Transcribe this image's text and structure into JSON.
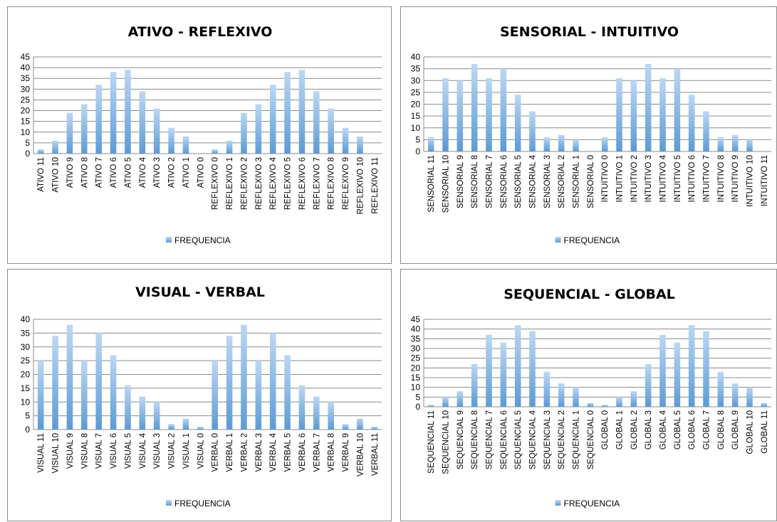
{
  "chart_data": [
    {
      "type": "bar",
      "title": "ATIVO - REFLEXIVO",
      "ylim": [
        0,
        45
      ],
      "ytick_step": 5,
      "grid": true,
      "legend_position": "bottom",
      "color": "#5b9bd5",
      "categories": [
        "ATIVO 11",
        "ATIVO 10",
        "ATIVO 9",
        "ATIVO 8",
        "ATIVO 7",
        "ATIVO 6",
        "ATIVO 5",
        "ATIVO 4",
        "ATIVO 3",
        "ATIVO 2",
        "ATIVO 1",
        "ATIVO 0",
        "REFLEXIVO 0",
        "REFLEXIVO 1",
        "REFLEXIVO 2",
        "REFLEXIVO 3",
        "REFLEXIVO 4",
        "REFLEXIVO 5",
        "REFLEXIVO 6",
        "REFLEXIVO 7",
        "REFLEXIVO 8",
        "REFLEXIVO 9",
        "REFLEXIVO 10",
        "REFLEXIVO 11"
      ],
      "series": [
        {
          "name": "FREQUENCIA",
          "values": [
            2,
            6,
            19,
            23,
            32,
            38,
            39,
            29,
            21,
            12,
            8,
            0,
            2,
            6,
            19,
            23,
            32,
            38,
            39,
            29,
            21,
            12,
            8,
            0
          ]
        }
      ]
    },
    {
      "type": "bar",
      "title": "SENSORIAL - INTUITIVO",
      "ylim": [
        0,
        40
      ],
      "ytick_step": 5,
      "grid": true,
      "legend_position": "bottom",
      "color": "#5b9bd5",
      "categories": [
        "SENSORIAL 11",
        "SENSORIAL 10",
        "SENSORIAL 9",
        "SENSORIAL 8",
        "SENSORIAL 7",
        "SENSORIAL 6",
        "SENSORIAL 5",
        "SENSORIAL 4",
        "SENSORIAL 3",
        "SENSORIAL 2",
        "SENSORIAL 1",
        "SENSORIAL 0",
        "INTUITIVO 0",
        "INTUITIVO 1",
        "INTUITIVO 2",
        "INTUITIVO 3",
        "INTUITIVO 4",
        "INTUITIVO 5",
        "INTUITIVO 6",
        "INTUITIVO 7",
        "INTUITIVO 8",
        "INTUITIVO 9",
        "INTUITIVO 10",
        "INTUITIVO 11"
      ],
      "series": [
        {
          "name": "FREQUENCIA",
          "values": [
            6,
            31,
            30,
            37,
            31,
            35,
            24,
            17,
            6,
            7,
            5,
            0,
            6,
            31,
            30,
            37,
            31,
            35,
            24,
            17,
            6,
            7,
            5,
            0
          ]
        }
      ]
    },
    {
      "type": "bar",
      "title": "VISUAL - VERBAL",
      "ylim": [
        0,
        40
      ],
      "ytick_step": 5,
      "grid": true,
      "legend_position": "bottom",
      "color": "#5b9bd5",
      "categories": [
        "VISUAL 11",
        "VISUAL 10",
        "VISUAL 9",
        "VISUAL 8",
        "VISUAL 7",
        "VISUAL 6",
        "VISUAL 5",
        "VISUAL 4",
        "VISUAL 3",
        "VISUAL 2",
        "VISUAL 1",
        "VISUAL 0",
        "VERBAL 0",
        "VERBAL 1",
        "VERBAL 2",
        "VERBAL 3",
        "VERBAL 4",
        "VERBAL 5",
        "VERBAL 6",
        "VERBAL 7",
        "VERBAL 8",
        "VERBAL 9",
        "VERBAL 10",
        "VERBAL 11"
      ],
      "series": [
        {
          "name": "FREQUENCIA",
          "values": [
            25,
            34,
            38,
            25,
            35,
            27,
            16,
            12,
            10,
            2,
            4,
            1,
            25,
            34,
            38,
            25,
            35,
            27,
            16,
            12,
            10,
            2,
            4,
            1
          ]
        }
      ]
    },
    {
      "type": "bar",
      "title": "SEQUENCIAL - GLOBAL",
      "ylim": [
        0,
        45
      ],
      "ytick_step": 5,
      "grid": true,
      "legend_position": "bottom",
      "color": "#5b9bd5",
      "categories": [
        "SEQUENCIAL 11",
        "SEQUENCIAL 10",
        "SEQUENCIAL 9",
        "SEQUENCIAL 8",
        "SEQUENCIAL 7",
        "SEQUENCIAL 6",
        "SEQUENCIAL 5",
        "SEQUENCIAL 4",
        "SEQUENCIAL 3",
        "SEQUENCIAL 2",
        "SEQUENCIAL 1",
        "SEQUENCIAL 0",
        "GLOBAL 0",
        "GLOBAL 1",
        "GLOBAL 2",
        "GLOBAL 3",
        "GLOBAL 4",
        "GLOBAL 5",
        "GLOBAL 6",
        "GLOBAL 7",
        "GLOBAL 8",
        "GLOBAL 9",
        "GLOBAL 10",
        "GLOBAL 11"
      ],
      "series": [
        {
          "name": "FREQUENCIA",
          "values": [
            1,
            5,
            8,
            22,
            37,
            33,
            42,
            39,
            18,
            12,
            10,
            2,
            1,
            5,
            8,
            22,
            37,
            33,
            42,
            39,
            18,
            12,
            10,
            2
          ]
        }
      ]
    }
  ]
}
